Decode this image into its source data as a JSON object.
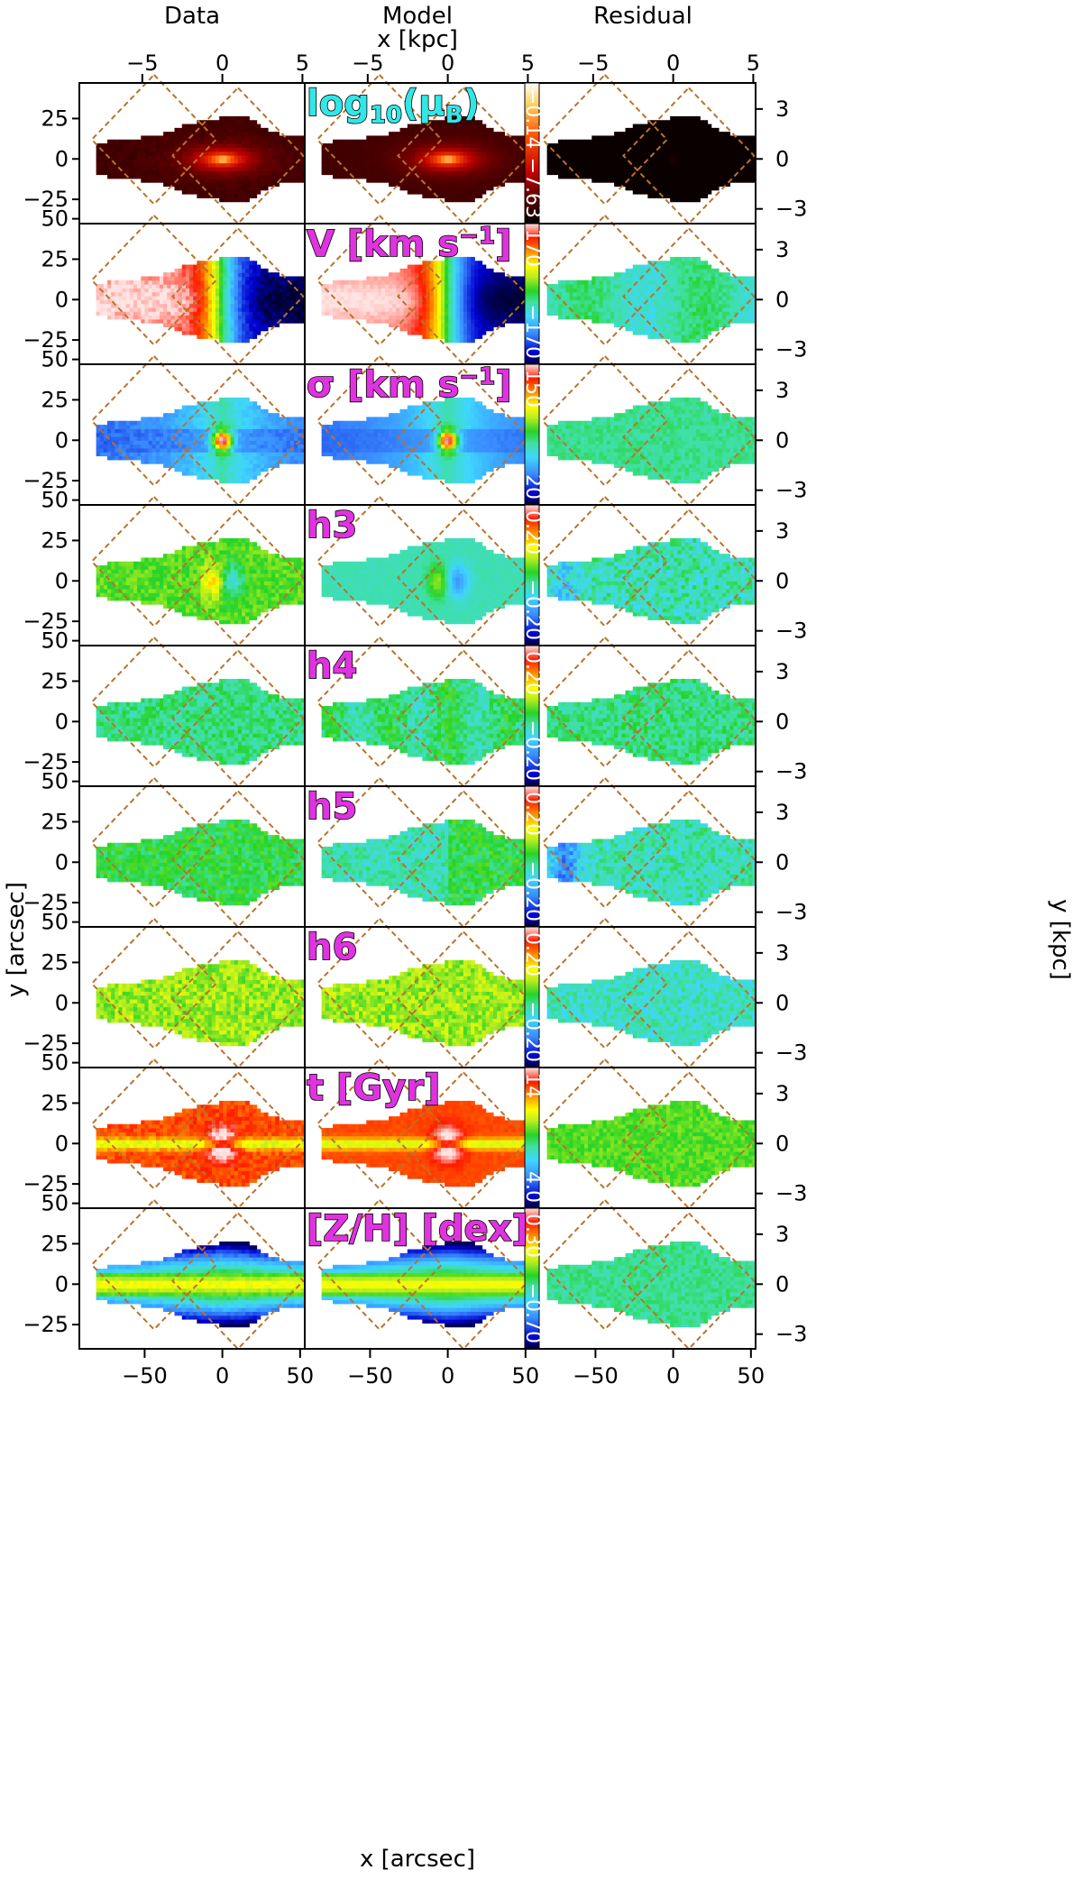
{
  "chart_data": {
    "type": "heatmap",
    "columns": [
      "Data",
      "Model",
      "Residual"
    ],
    "top_axis_label": "x [kpc]",
    "bottom_axis_label": "x [arcsec]",
    "left_axis_label": "y [arcsec]",
    "right_axis_label": "y [kpc]",
    "top_ticks": [
      "−5",
      "0",
      "5"
    ],
    "bottom_ticks": [
      "−50",
      "0",
      "50"
    ],
    "left_ticks": [
      "25",
      "0",
      "−25"
    ],
    "left_ticks_row1": [
      "25",
      "0",
      "−25"
    ],
    "left_ticks_rows_2_9": [
      "25",
      "0",
      "−25"
    ],
    "left_top_tick": "50",
    "right_ticks": [
      "3",
      "0",
      "−3"
    ],
    "x_range_arcsec": [
      -92,
      53
    ],
    "y_range_arcsec": [
      -40,
      47
    ],
    "rows": [
      {
        "label": "log10(μB)",
        "label_main": "log",
        "label_sub": "10",
        "label_rest": "(μ",
        "label_rest_sub": "B",
        "label_end": ")",
        "cbar": {
          "max": "−0.14",
          "min": "−7.63",
          "cmap": "hot"
        }
      },
      {
        "label": "V [km s−1]",
        "label_main": "V [km s",
        "label_sup": "−1",
        "label_end": "]",
        "cbar": {
          "max": "170",
          "min": "−170",
          "cmap": "rainbow"
        }
      },
      {
        "label": "σ [km s−1]",
        "label_main": "σ [km s",
        "label_sup": "−1",
        "label_end": "]",
        "cbar": {
          "max": "150",
          "min": "20",
          "cmap": "rainbow"
        }
      },
      {
        "label": "h3",
        "cbar": {
          "max": "0.20",
          "min": "−0.20",
          "cmap": "rainbow"
        }
      },
      {
        "label": "h4",
        "cbar": {
          "max": "0.20",
          "min": "−0.20",
          "cmap": "rainbow"
        }
      },
      {
        "label": "h5",
        "cbar": {
          "max": "0.20",
          "min": "−0.20",
          "cmap": "rainbow"
        }
      },
      {
        "label": "h6",
        "cbar": {
          "max": "0.20",
          "min": "−0.20",
          "cmap": "rainbow"
        }
      },
      {
        "label": "t [Gyr]",
        "cbar": {
          "max": "14",
          "min": "4.0",
          "cmap": "rainbow"
        }
      },
      {
        "label": "[Z/H] [dex]",
        "cbar": {
          "max": "0.30",
          "min": "−0.70",
          "cmap": "rainbow"
        }
      }
    ],
    "footprint_color": "#b8732a"
  }
}
